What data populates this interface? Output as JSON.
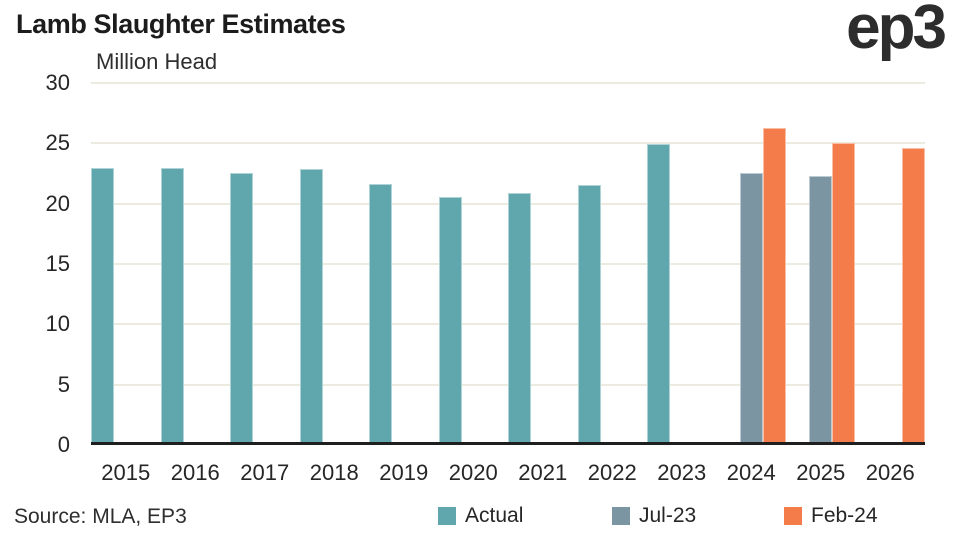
{
  "header": {
    "title": "Lamb Slaughter Estimates",
    "logo_text": "ep3"
  },
  "chart_data": {
    "type": "bar",
    "title": "Lamb Slaughter Estimates",
    "unit_label": "Million Head",
    "ylabel": "Million Head",
    "xlabel": "",
    "ylim": [
      0,
      30
    ],
    "yticks": [
      0,
      5,
      10,
      15,
      20,
      25,
      30
    ],
    "grid": true,
    "legend_position": "bottom",
    "categories": [
      "2015",
      "2016",
      "2017",
      "2018",
      "2019",
      "2020",
      "2021",
      "2022",
      "2023",
      "2024",
      "2025",
      "2026"
    ],
    "series": [
      {
        "name": "Actual",
        "color": "#5fa7ac",
        "values": [
          22.9,
          22.9,
          22.5,
          22.8,
          21.6,
          20.5,
          20.8,
          21.5,
          24.9,
          null,
          null,
          null
        ]
      },
      {
        "name": "Jul-23",
        "color": "#7b95a2",
        "values": [
          null,
          null,
          null,
          null,
          null,
          null,
          null,
          null,
          null,
          22.5,
          22.2,
          null
        ]
      },
      {
        "name": "Feb-24",
        "color": "#f47c4b",
        "values": [
          null,
          null,
          null,
          null,
          null,
          null,
          null,
          null,
          null,
          26.2,
          25.0,
          24.6
        ]
      }
    ]
  },
  "legend": {
    "items": [
      {
        "label": "Actual",
        "color": "#5fa7ac"
      },
      {
        "label": "Jul-23",
        "color": "#7b95a2"
      },
      {
        "label": "Feb-24",
        "color": "#f47c4b"
      }
    ]
  },
  "footer": {
    "source": "Source: MLA, EP3"
  },
  "colors": {
    "gridline": "#edeae0",
    "axis_line": "#1f1f1f",
    "text": "#262626"
  }
}
